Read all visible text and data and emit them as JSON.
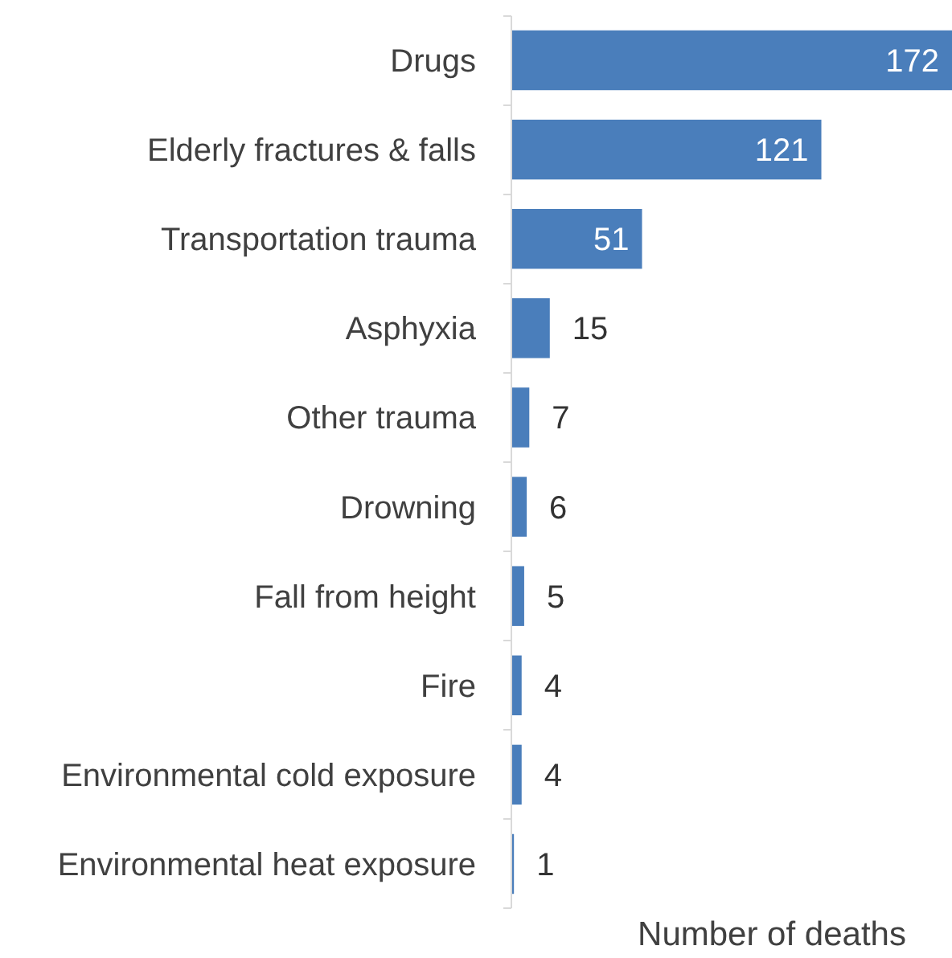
{
  "chart_data": {
    "type": "bar",
    "orientation": "horizontal",
    "xlabel": "Number of deaths",
    "categories": [
      "Drugs",
      "Elderly fractures & falls",
      "Transportation trauma",
      "Asphyxia",
      "Other trauma",
      "Drowning",
      "Fall from height",
      "Fire",
      "Environmental cold exposure",
      "Environmental heat exposure"
    ],
    "values": [
      172,
      121,
      51,
      15,
      7,
      6,
      5,
      4,
      4,
      1
    ],
    "color": "#4a7ebb",
    "data_labels": true
  }
}
